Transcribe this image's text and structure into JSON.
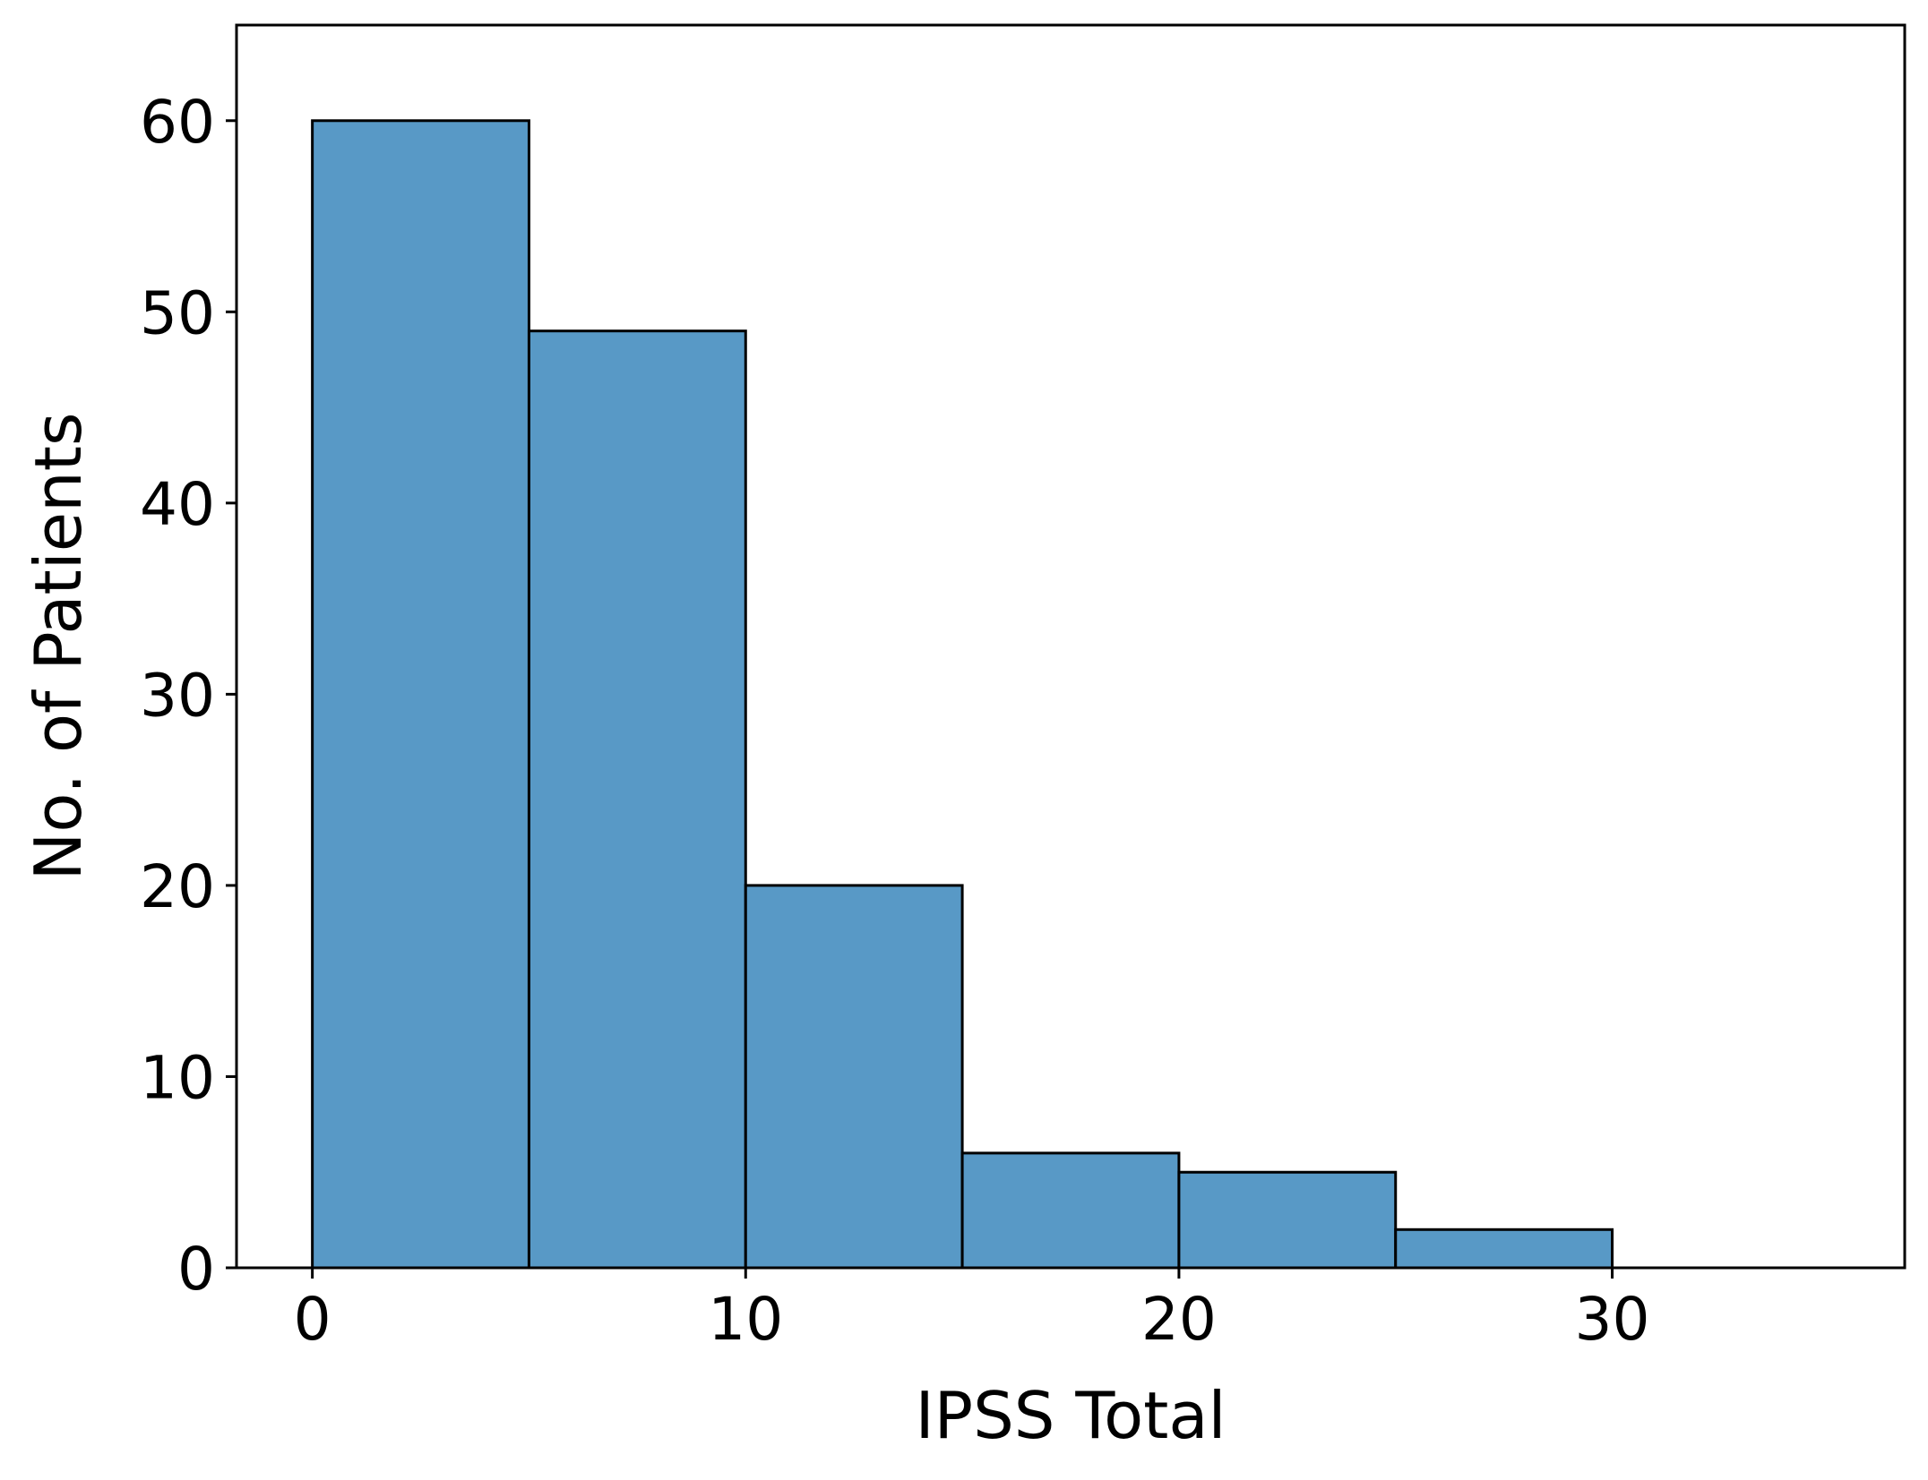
{
  "chart_data": {
    "type": "bar",
    "histogram": true,
    "bins": [
      {
        "x0": 0,
        "x1": 5,
        "count": 60
      },
      {
        "x0": 5,
        "x1": 10,
        "count": 49
      },
      {
        "x0": 10,
        "x1": 15,
        "count": 20
      },
      {
        "x0": 15,
        "x1": 20,
        "count": 6
      },
      {
        "x0": 20,
        "x1": 25,
        "count": 5
      },
      {
        "x0": 25,
        "x1": 30,
        "count": 2
      },
      {
        "x0": 30,
        "x1": 35,
        "count": 0
      }
    ],
    "xlabel": "IPSS Total",
    "ylabel": "No. of Patients",
    "xlim": [
      -1.75,
      36.75
    ],
    "ylim": [
      0,
      65
    ],
    "xticks": [
      0,
      10,
      20,
      30
    ],
    "yticks": [
      0,
      10,
      20,
      30,
      40,
      50,
      60
    ],
    "grid": false,
    "colors": {
      "bar_fill": "#5899c6",
      "bar_edge": "#000000"
    }
  }
}
